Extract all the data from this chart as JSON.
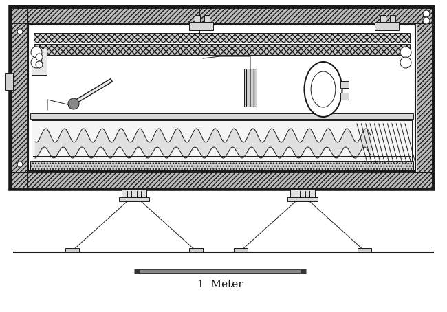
{
  "bg_color": "#ffffff",
  "lc": "#1a1a1a",
  "figsize": [
    6.5,
    4.54
  ],
  "dpi": 100,
  "scale_bar_label": "1  Meter",
  "lw_thick": 3.0,
  "lw_med": 1.5,
  "lw_thin": 0.7
}
